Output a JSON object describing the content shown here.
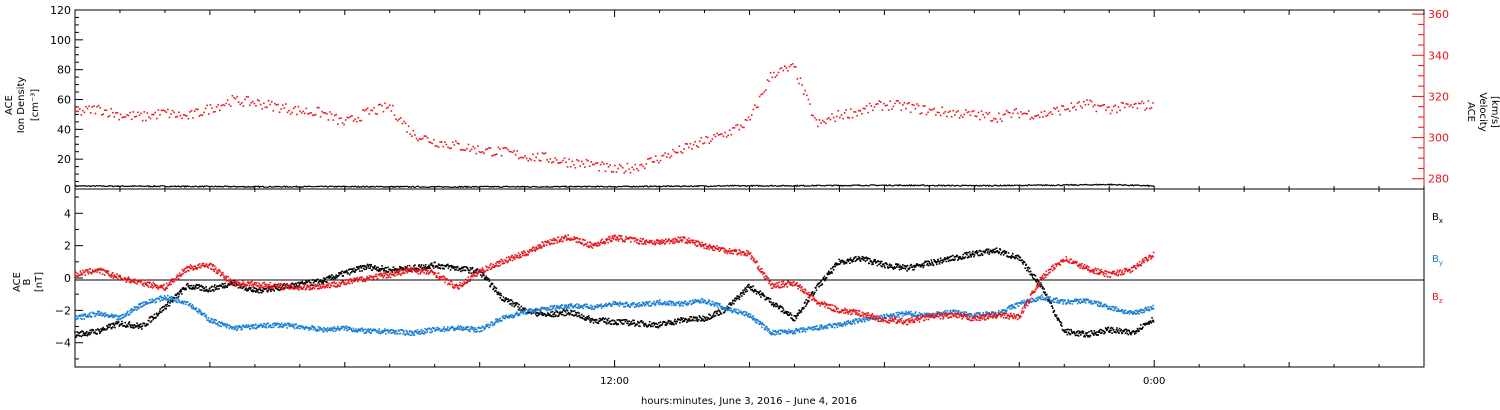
{
  "xlabel": "hours:minutes, June  3, 2016 – June  4, 2016",
  "x_ticks": [
    "12:00",
    "0:00"
  ],
  "colors": {
    "density": "#000000",
    "velocity": "#e8151b",
    "bx": "#000000",
    "by": "#1a7fd4",
    "bz": "#e8151b",
    "axis": "#000000"
  },
  "top_panel": {
    "left_label": [
      "ACE",
      "Ion Density",
      "[cm⁻³]"
    ],
    "right_label": [
      "ACE",
      "Velocity",
      "[km/s]"
    ],
    "left_ticks": [
      "0",
      "20",
      "40",
      "60",
      "80",
      "100",
      "120"
    ],
    "right_ticks": [
      "280",
      "300",
      "320",
      "340",
      "360"
    ]
  },
  "bottom_panel": {
    "left_label": [
      "ACE",
      "B",
      "[nT]"
    ],
    "left_ticks": [
      "−4",
      "−2",
      "0",
      "2",
      "4"
    ],
    "legend": [
      "Bx",
      "By",
      "Bz"
    ]
  },
  "chart_data": [
    {
      "type": "line",
      "x_unit": "hours since 2016-06-03 00:00 UT",
      "xlim": [
        0,
        30
      ],
      "ylim": [
        0,
        120
      ],
      "y2lim": [
        275,
        362
      ],
      "grid": false,
      "series": [
        {
          "name": "Ion Density",
          "axis": "left",
          "x": [
            0,
            2,
            4,
            6,
            8,
            10,
            12,
            14,
            16,
            18,
            20,
            22,
            23,
            24
          ],
          "values": [
            2,
            1.8,
            1.5,
            1.6,
            1.4,
            1.5,
            1.6,
            2,
            2.2,
            2.5,
            2.2,
            2.6,
            3,
            2
          ]
        },
        {
          "name": "Velocity",
          "axis": "right",
          "x": [
            0,
            0.5,
            1,
            1.5,
            2,
            2.5,
            3,
            3.5,
            4,
            4.5,
            5,
            5.5,
            6,
            6.5,
            7,
            7.5,
            8,
            8.5,
            9,
            9.5,
            10,
            10.5,
            11,
            11.5,
            12,
            12.5,
            13,
            13.5,
            14,
            14.5,
            15,
            15.5,
            16,
            16.5,
            17,
            17.5,
            18,
            18.5,
            19,
            19.5,
            20,
            20.5,
            21,
            21.5,
            22,
            22.5,
            23,
            23.5,
            24
          ],
          "values": [
            312,
            314,
            311,
            310,
            312,
            310,
            314,
            318,
            317,
            315,
            313,
            312,
            307,
            312,
            315,
            302,
            298,
            296,
            294,
            293,
            291,
            290,
            288,
            287,
            284,
            286,
            290,
            294,
            298,
            302,
            308,
            331,
            334,
            306,
            311,
            313,
            316,
            315,
            313,
            312,
            311,
            310,
            312,
            311,
            314,
            316,
            314,
            315,
            316
          ]
        }
      ]
    },
    {
      "type": "line",
      "x_unit": "hours since 2016-06-03 00:00 UT",
      "xlim": [
        0,
        30
      ],
      "ylim": [
        -5.5,
        5.5
      ],
      "grid": false,
      "series": [
        {
          "name": "Bx",
          "x": [
            0,
            0.5,
            1,
            1.5,
            2,
            2.5,
            3,
            3.5,
            4,
            4.5,
            5,
            5.5,
            6,
            6.5,
            7,
            7.5,
            8,
            8.5,
            9,
            9.5,
            10,
            10.5,
            11,
            11.5,
            12,
            12.5,
            13,
            13.5,
            14,
            14.5,
            15,
            15.5,
            16,
            16.5,
            17,
            17.5,
            18,
            18.5,
            19,
            19.5,
            20,
            20.5,
            21,
            21.5,
            22,
            22.5,
            23,
            23.5,
            24
          ],
          "values": [
            -3.5,
            -3.3,
            -2.8,
            -3,
            -1.8,
            -0.5,
            -0.7,
            -0.3,
            -0.8,
            -0.6,
            -0.4,
            -0.2,
            0.3,
            0.7,
            0.5,
            0.6,
            0.8,
            0.6,
            0.4,
            -1.2,
            -2,
            -2.3,
            -2.1,
            -2.6,
            -2.7,
            -2.8,
            -2.9,
            -2.6,
            -2.5,
            -1.9,
            -0.5,
            -1.5,
            -2.5,
            -0.6,
            1,
            1.2,
            0.8,
            0.6,
            0.9,
            1.2,
            1.5,
            1.7,
            1.2,
            -0.5,
            -3.3,
            -3.5,
            -3.2,
            -3.4,
            -2.5
          ]
        },
        {
          "name": "By",
          "x": [
            0,
            0.5,
            1,
            1.5,
            2,
            2.5,
            3,
            3.5,
            4,
            4.5,
            5,
            5.5,
            6,
            6.5,
            7,
            7.5,
            8,
            8.5,
            9,
            9.5,
            10,
            10.5,
            11,
            11.5,
            12,
            12.5,
            13,
            13.5,
            14,
            14.5,
            15,
            15.5,
            16,
            16.5,
            17,
            17.5,
            18,
            18.5,
            19,
            19.5,
            20,
            20.5,
            21,
            21.5,
            22,
            22.5,
            23,
            23.5,
            24
          ],
          "values": [
            -2.5,
            -2.2,
            -2.5,
            -1.6,
            -1.2,
            -1.5,
            -2.6,
            -3.1,
            -3,
            -2.9,
            -3,
            -3.2,
            -3.1,
            -3.3,
            -3.3,
            -3.4,
            -3.2,
            -3.1,
            -3.2,
            -2.5,
            -2.1,
            -1.9,
            -1.7,
            -1.8,
            -1.6,
            -1.7,
            -1.5,
            -1.6,
            -1.4,
            -1.9,
            -2.3,
            -3.4,
            -3.3,
            -3.1,
            -2.9,
            -2.6,
            -2.4,
            -2.2,
            -2.3,
            -2.1,
            -2.3,
            -2.2,
            -1.6,
            -1.2,
            -1.5,
            -1.4,
            -1.8,
            -2.2,
            -1.8
          ]
        },
        {
          "name": "Bz",
          "x": [
            0,
            0.5,
            1,
            1.5,
            2,
            2.5,
            3,
            3.5,
            4,
            4.5,
            5,
            5.5,
            6,
            6.5,
            7,
            7.5,
            8,
            8.5,
            9,
            9.5,
            10,
            10.5,
            11,
            11.5,
            12,
            12.5,
            13,
            13.5,
            14,
            14.5,
            15,
            15.5,
            16,
            16.5,
            17,
            17.5,
            18,
            18.5,
            19,
            19.5,
            20,
            20.5,
            21,
            21.5,
            22,
            22.5,
            23,
            23.5,
            24
          ],
          "values": [
            0.2,
            0.5,
            0,
            -0.3,
            -0.6,
            0.6,
            0.8,
            -0.3,
            -0.4,
            -0.5,
            -0.6,
            -0.5,
            -0.3,
            0,
            0.2,
            0.5,
            0.3,
            -0.6,
            0.4,
            1,
            1.5,
            2.2,
            2.5,
            2,
            2.5,
            2.3,
            2.2,
            2.4,
            2,
            1.7,
            1.5,
            -0.5,
            -0.3,
            -1.5,
            -2,
            -2.2,
            -2.6,
            -2.7,
            -2.4,
            -2.3,
            -2.5,
            -2.3,
            -2.4,
            0,
            1.2,
            0.6,
            0.2,
            0.5,
            1.5
          ]
        }
      ]
    }
  ]
}
